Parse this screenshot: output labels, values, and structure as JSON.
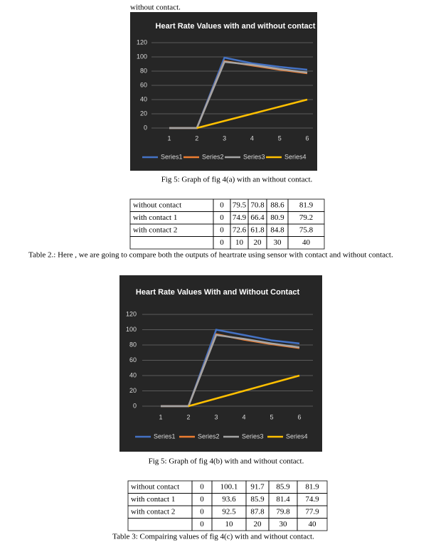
{
  "top_text": "without contact.",
  "chart_data": [
    {
      "type": "line",
      "title": "Heart Rate Values with and without contact",
      "categories": [
        "1",
        "2",
        "3",
        "4",
        "5",
        "6"
      ],
      "series": [
        {
          "name": "Series1",
          "color": "#4472c4",
          "values": [
            0,
            0,
            99,
            91,
            86,
            82
          ]
        },
        {
          "name": "Series2",
          "color": "#ed7d31",
          "values": [
            0,
            0,
            94,
            88,
            82,
            77
          ]
        },
        {
          "name": "Series3",
          "color": "#a5a5a5",
          "values": [
            0,
            0,
            93,
            89,
            83,
            78
          ]
        },
        {
          "name": "Series4",
          "color": "#ffc000",
          "values": [
            null,
            0,
            10,
            20,
            30,
            40
          ]
        }
      ],
      "ylim": [
        0,
        120
      ],
      "yticks": [
        0,
        20,
        40,
        60,
        80,
        100,
        120
      ],
      "grid": true,
      "legend": "bottom"
    },
    {
      "type": "line",
      "title": "Heart Rate Values With and Without Contact",
      "categories": [
        "1",
        "2",
        "3",
        "4",
        "5",
        "6"
      ],
      "series": [
        {
          "name": "Series1",
          "color": "#4472c4",
          "values": [
            0,
            0,
            100,
            93,
            86,
            82
          ]
        },
        {
          "name": "Series2",
          "color": "#ed7d31",
          "values": [
            0,
            0,
            94,
            87,
            81,
            76
          ]
        },
        {
          "name": "Series3",
          "color": "#a5a5a5",
          "values": [
            0,
            0,
            93,
            88,
            82,
            77
          ]
        },
        {
          "name": "Series4",
          "color": "#ffc000",
          "values": [
            null,
            0,
            10,
            20,
            30,
            40
          ]
        }
      ],
      "ylim": [
        0,
        120
      ],
      "yticks": [
        0,
        20,
        40,
        60,
        80,
        100,
        120
      ],
      "grid": true,
      "legend": "bottom"
    }
  ],
  "captions": [
    "Fig 5: Graph of fig 4(a) with an without contact.",
    "Table 2.: Here , we are going to compare both the outputs of heartrate using sensor with contact and without contact.",
    "Fig 5: Graph of fig 4(b) with and without contact.",
    "Table 3: Compairing values of fig 4(c) with and without contact."
  ],
  "tables": [
    {
      "rows": [
        [
          "without contact",
          0,
          79.5,
          70.8,
          88.6,
          81.9
        ],
        [
          "with contact 1",
          0,
          74.9,
          66.4,
          80.9,
          79.2
        ],
        [
          "with contact 2",
          0,
          72.6,
          61.8,
          84.8,
          75.8
        ],
        [
          null,
          0,
          10,
          20,
          30,
          40
        ]
      ]
    },
    {
      "rows": [
        [
          "without contact",
          0,
          100.1,
          91.7,
          85.9,
          81.9
        ],
        [
          "with contact 1",
          0,
          93.6,
          85.9,
          81.4,
          74.9
        ],
        [
          "with contact 2",
          0,
          92.5,
          87.8,
          79.8,
          77.9
        ],
        [
          null,
          0,
          10,
          20,
          30,
          40
        ]
      ]
    }
  ]
}
